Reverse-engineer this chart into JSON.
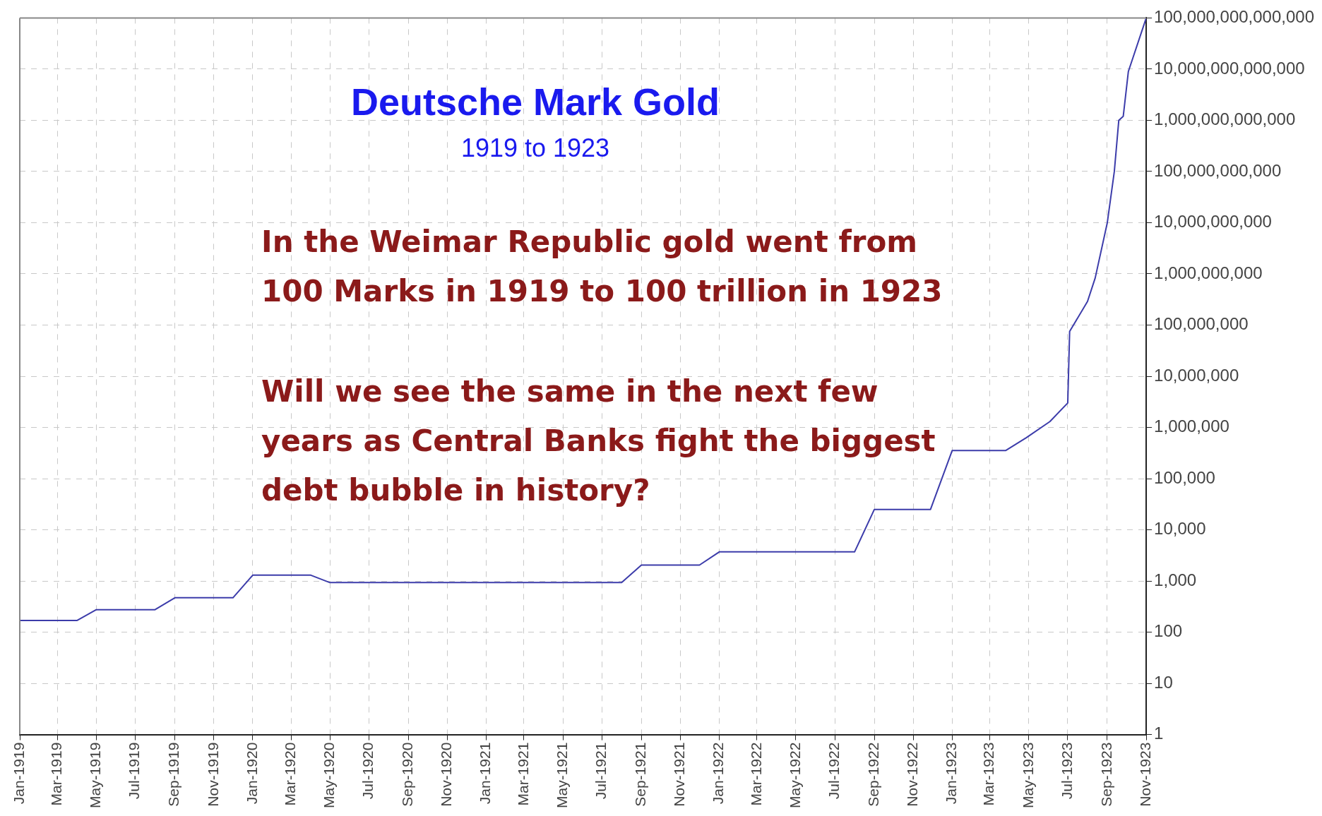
{
  "chart_data": {
    "type": "line",
    "title": "Deutsche Mark Gold",
    "subtitle": "1919 to 1923",
    "annotations": [
      "In the Weimar Republic gold went from\n100 Marks in 1919 to 100 trillion in 1923",
      "Will we see the same in the next few\nyears as Central Banks fight the biggest\ndebt bubble in history?"
    ],
    "x": [
      "1919-01",
      "1919-04",
      "1919-05",
      "1919-08",
      "1919-09",
      "1919-12",
      "1920-01",
      "1920-04",
      "1920-05",
      "1921-08",
      "1921-09",
      "1921-12",
      "1922-01",
      "1922-08",
      "1922-09",
      "1922-11-28",
      "1923-01",
      "1923-03-26",
      "1923-04-27",
      "1923-06-03",
      "1923-07-01",
      "1923-07-04",
      "1923-08-01",
      "1923-08-13",
      "1923-09-01",
      "1923-09-12",
      "1923-09-19",
      "1923-09-26",
      "1923-10-04",
      "1923-11-01"
    ],
    "series": [
      {
        "color": "#3c3caa",
        "values": [
          170,
          170,
          275,
          275,
          470,
          470,
          1300,
          1300,
          930,
          930,
          2050,
          2050,
          3700,
          3700,
          25000,
          25000,
          355000,
          355000,
          630000,
          1300000,
          3000000,
          75000000,
          290000000,
          830000000,
          10000000000,
          100000000000,
          1000000000000,
          1200000000000,
          9000000000000,
          100000000000000
        ]
      }
    ],
    "log": "y",
    "grid": true,
    "legend": false,
    "marker": "none",
    "line_style": "solid",
    "xlim": [
      "1919-01",
      "1923-11"
    ],
    "xticks": [
      {
        "value": "1919-01",
        "label": "Jan-1919"
      },
      {
        "value": "1919-03",
        "label": "Mar-1919"
      },
      {
        "value": "1919-05",
        "label": "May-1919"
      },
      {
        "value": "1919-07",
        "label": "Jul-1919"
      },
      {
        "value": "1919-09",
        "label": "Sep-1919"
      },
      {
        "value": "1919-11",
        "label": "Nov-1919"
      },
      {
        "value": "1920-01",
        "label": "Jan-1920"
      },
      {
        "value": "1920-03",
        "label": "Mar-1920"
      },
      {
        "value": "1920-05",
        "label": "May-1920"
      },
      {
        "value": "1920-07",
        "label": "Jul-1920"
      },
      {
        "value": "1920-09",
        "label": "Sep-1920"
      },
      {
        "value": "1920-11",
        "label": "Nov-1920"
      },
      {
        "value": "1921-01",
        "label": "Jan-1921"
      },
      {
        "value": "1921-03",
        "label": "Mar-1921"
      },
      {
        "value": "1921-05",
        "label": "May-1921"
      },
      {
        "value": "1921-07",
        "label": "Jul-1921"
      },
      {
        "value": "1921-09",
        "label": "Sep-1921"
      },
      {
        "value": "1921-11",
        "label": "Nov-1921"
      },
      {
        "value": "1922-01",
        "label": "Jan-1922"
      },
      {
        "value": "1922-03",
        "label": "Mar-1922"
      },
      {
        "value": "1922-05",
        "label": "May-1922"
      },
      {
        "value": "1922-07",
        "label": "Jul-1922"
      },
      {
        "value": "1922-09",
        "label": "Sep-1922"
      },
      {
        "value": "1922-11",
        "label": "Nov-1922"
      },
      {
        "value": "1923-01",
        "label": "Jan-1923"
      },
      {
        "value": "1923-03",
        "label": "Mar-1923"
      },
      {
        "value": "1923-05",
        "label": "May-1923"
      },
      {
        "value": "1923-07",
        "label": "Jul-1923"
      },
      {
        "value": "1923-09",
        "label": "Sep-1923"
      },
      {
        "value": "1923-11",
        "label": "Nov-1923"
      }
    ],
    "ylim": [
      1,
      100000000000000
    ],
    "yticks": [
      {
        "value": 1,
        "label": "1"
      },
      {
        "value": 10,
        "label": "10"
      },
      {
        "value": 100,
        "label": "100"
      },
      {
        "value": 1000,
        "label": "1,000"
      },
      {
        "value": 10000,
        "label": "10,000"
      },
      {
        "value": 100000,
        "label": "100,000"
      },
      {
        "value": 1000000,
        "label": "1,000,000"
      },
      {
        "value": 10000000,
        "label": "10,000,000"
      },
      {
        "value": 100000000,
        "label": "100,000,000"
      },
      {
        "value": 1000000000,
        "label": "1,000,000,000"
      },
      {
        "value": 10000000000,
        "label": "10,000,000,000"
      },
      {
        "value": 100000000000,
        "label": "100,000,000,000"
      },
      {
        "value": 1000000000000,
        "label": "1,000,000,000,000"
      },
      {
        "value": 10000000000000,
        "label": "10,000,000,000,000"
      },
      {
        "value": 100000000000000,
        "label": "100,000,000,000,000"
      }
    ]
  }
}
